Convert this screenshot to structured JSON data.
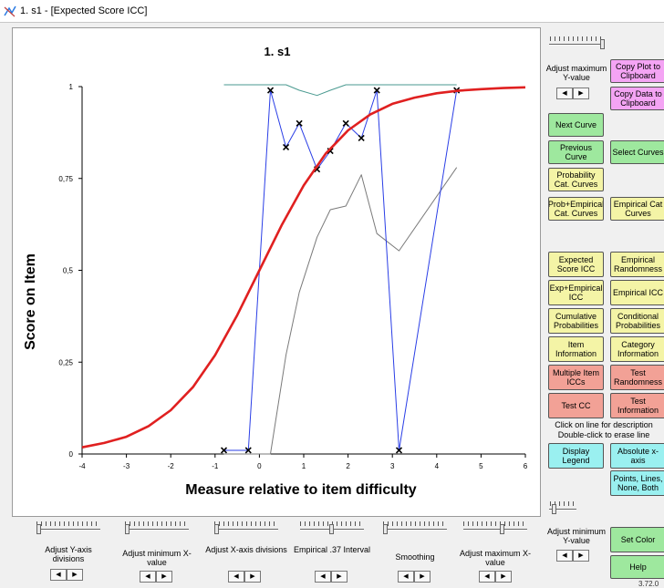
{
  "window": {
    "title": "1. s1 - [Expected Score ICC]"
  },
  "chart_data": {
    "type": "line",
    "title": "1. s1",
    "xlabel": "Measure relative to item difficulty",
    "ylabel": "Score on Item",
    "xlim": [
      -4,
      6
    ],
    "ylim": [
      0,
      1
    ],
    "x_ticks": [
      "-4",
      "-3",
      "-2",
      "-1",
      "0",
      "1",
      "2",
      "3",
      "4",
      "5",
      "6"
    ],
    "y_ticks": [
      "0",
      "0,25",
      "0,5",
      "0,75",
      "1"
    ],
    "grid": false,
    "series": [
      {
        "color": "#e02020",
        "style": "smooth",
        "x": [
          -4,
          -3.5,
          -3,
          -2.5,
          -2,
          -1.5,
          -1,
          -0.5,
          0,
          0.5,
          1,
          1.5,
          2,
          2.5,
          3,
          3.5,
          4,
          4.5,
          5,
          5.5,
          6
        ],
        "y": [
          0.018,
          0.03,
          0.047,
          0.076,
          0.119,
          0.182,
          0.269,
          0.378,
          0.5,
          0.622,
          0.731,
          0.818,
          0.881,
          0.924,
          0.953,
          0.97,
          0.982,
          0.989,
          0.993,
          0.996,
          0.998
        ]
      },
      {
        "color": "#2a3ee6",
        "style": "markers",
        "marker": "x",
        "x": [
          -0.8,
          -0.25,
          0.25,
          0.6,
          0.9,
          1.3,
          1.6,
          1.95,
          2.3,
          2.65,
          3.15,
          4.45
        ],
        "y": [
          0.01,
          0.01,
          0.99,
          0.835,
          0.9,
          0.775,
          0.825,
          0.9,
          0.86,
          0.99,
          0.01,
          0.99
        ]
      },
      {
        "color": "#7a7a7a",
        "style": "line",
        "x": [
          -0.8,
          -0.25,
          0.25,
          0.6,
          0.9,
          1.3,
          1.6,
          1.95,
          2.3,
          2.65,
          3.15,
          4.45
        ],
        "y": [
          0.0,
          0.0,
          0.0,
          0.27,
          0.44,
          0.59,
          0.665,
          0.675,
          0.76,
          0.6,
          0.553,
          0.78
        ]
      },
      {
        "color": "#4a9a90",
        "style": "line",
        "x": [
          -0.8,
          -0.25,
          0.25,
          0.6,
          0.9,
          1.3,
          1.6,
          1.95,
          2.3,
          2.65,
          3.15,
          4.45
        ],
        "y": [
          1.005,
          1.005,
          1.005,
          1.005,
          0.99,
          0.976,
          0.99,
          1.005,
          1.005,
          1.005,
          1.005,
          1.005
        ]
      }
    ]
  },
  "right_panel": {
    "adjust_max_y": "Adjust maximum Y-value",
    "copy_plot": "Copy Plot to Clipboard",
    "copy_data": "Copy Data to Clipboard",
    "next_curve": "Next Curve",
    "previous_curve": "Previous Curve",
    "select_curves": "Select Curves",
    "prob_cat_curves": "Probability Cat. Curves",
    "prob_empirical": "Prob+Empirical Cat. Curves",
    "empirical_cat": "Empirical Cat Curves",
    "expected_score": "Expected Score ICC",
    "empirical_randomness": "Empirical Randomness",
    "exp_empirical": "Exp+Empirical ICC",
    "empirical_icc": "Empirical ICC",
    "cumulative_prob": "Cumulative Probabilities",
    "conditional_prob": "Conditional Probabilities",
    "item_info": "Item Information",
    "category_info": "Category Information",
    "multiple_item": "Multiple Item ICCs",
    "test_randomness": "Test Randomness",
    "test_cc": "Test CC",
    "test_info": "Test Information",
    "hint_line1": "Click on line for description",
    "hint_line2": "Double-click to erase line",
    "display_legend": "Display Legend",
    "absolute_x": "Absolute x-axis",
    "points_lines": "Points, Lines, None, Both",
    "adjust_min_y": "Adjust minimum Y-value",
    "set_color": "Set Color",
    "help": "Help",
    "version": "3.72.0"
  },
  "bottom_controls": [
    {
      "label": "Adjust Y-axis divisions"
    },
    {
      "label": "Adjust minimum X-value"
    },
    {
      "label": "Adjust X-axis divisions"
    },
    {
      "label": "Empirical .37 Interval"
    },
    {
      "label": "Smoothing"
    },
    {
      "label": "Adjust maximum X-value"
    }
  ],
  "spin": {
    "left": "◀",
    "right": "▶"
  }
}
